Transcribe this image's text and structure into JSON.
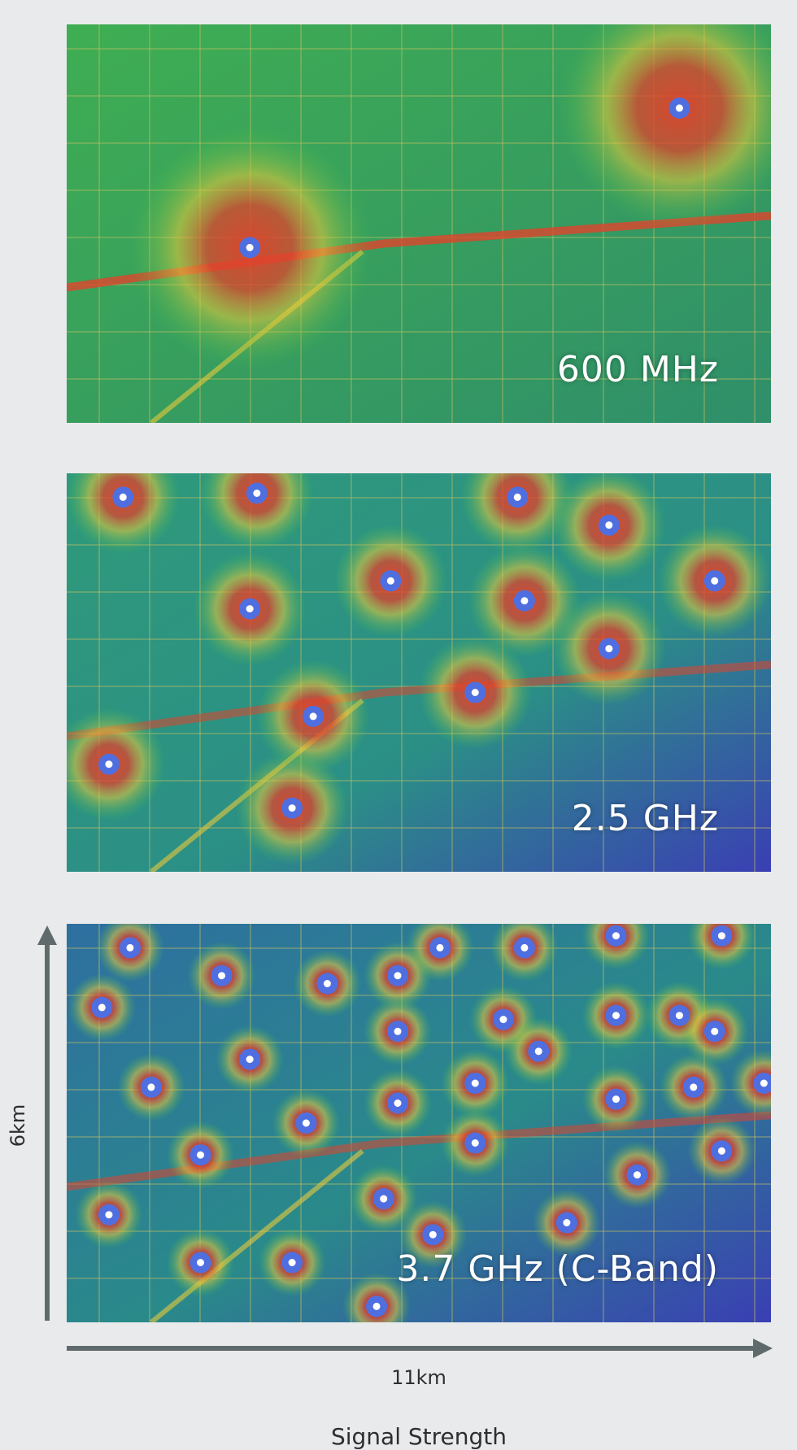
{
  "colors": {
    "background": "#e9eaeb",
    "axis": "#5f6a6d",
    "strong_signal": "#e0432c",
    "good_signal": "#e9c93a",
    "medium_signal": "#45c24a",
    "weak_signal": "#1fa0a8",
    "no_signal": "#3a3fb4",
    "site_marker": "#4f6fe0"
  },
  "panels": [
    {
      "id": "600",
      "label": "600 MHz",
      "sites": [
        [
          0.26,
          0.56
        ],
        [
          0.87,
          0.21
        ]
      ],
      "spread": 150
    },
    {
      "id": "25",
      "label": "2.5 GHz",
      "sites": [
        [
          0.08,
          0.06
        ],
        [
          0.27,
          0.05
        ],
        [
          0.64,
          0.06
        ],
        [
          0.77,
          0.13
        ],
        [
          0.46,
          0.27
        ],
        [
          0.26,
          0.34
        ],
        [
          0.65,
          0.32
        ],
        [
          0.92,
          0.27
        ],
        [
          0.77,
          0.44
        ],
        [
          0.58,
          0.55
        ],
        [
          0.35,
          0.61
        ],
        [
          0.06,
          0.73
        ],
        [
          0.32,
          0.84
        ]
      ],
      "spread": 70
    },
    {
      "id": "37",
      "label": "3.7 GHz (C-Band)",
      "sites": [
        [
          0.09,
          0.06
        ],
        [
          0.53,
          0.06
        ],
        [
          0.65,
          0.06
        ],
        [
          0.78,
          0.03
        ],
        [
          0.93,
          0.03
        ],
        [
          0.22,
          0.13
        ],
        [
          0.47,
          0.13
        ],
        [
          0.37,
          0.15
        ],
        [
          0.05,
          0.21
        ],
        [
          0.62,
          0.24
        ],
        [
          0.78,
          0.23
        ],
        [
          0.87,
          0.23
        ],
        [
          0.47,
          0.27
        ],
        [
          0.92,
          0.27
        ],
        [
          0.26,
          0.34
        ],
        [
          0.67,
          0.32
        ],
        [
          0.12,
          0.41
        ],
        [
          0.58,
          0.4
        ],
        [
          0.89,
          0.41
        ],
        [
          0.99,
          0.4
        ],
        [
          0.47,
          0.45
        ],
        [
          0.78,
          0.44
        ],
        [
          0.34,
          0.5
        ],
        [
          0.58,
          0.55
        ],
        [
          0.93,
          0.57
        ],
        [
          0.19,
          0.58
        ],
        [
          0.81,
          0.63
        ],
        [
          0.45,
          0.69
        ],
        [
          0.06,
          0.73
        ],
        [
          0.71,
          0.75
        ],
        [
          0.52,
          0.78
        ],
        [
          0.19,
          0.85
        ],
        [
          0.32,
          0.85
        ],
        [
          0.44,
          0.96
        ]
      ],
      "spread": 42
    }
  ],
  "axes": {
    "x_label": "11km",
    "y_label": "6km"
  },
  "legend": {
    "title": "Signal Strength"
  }
}
